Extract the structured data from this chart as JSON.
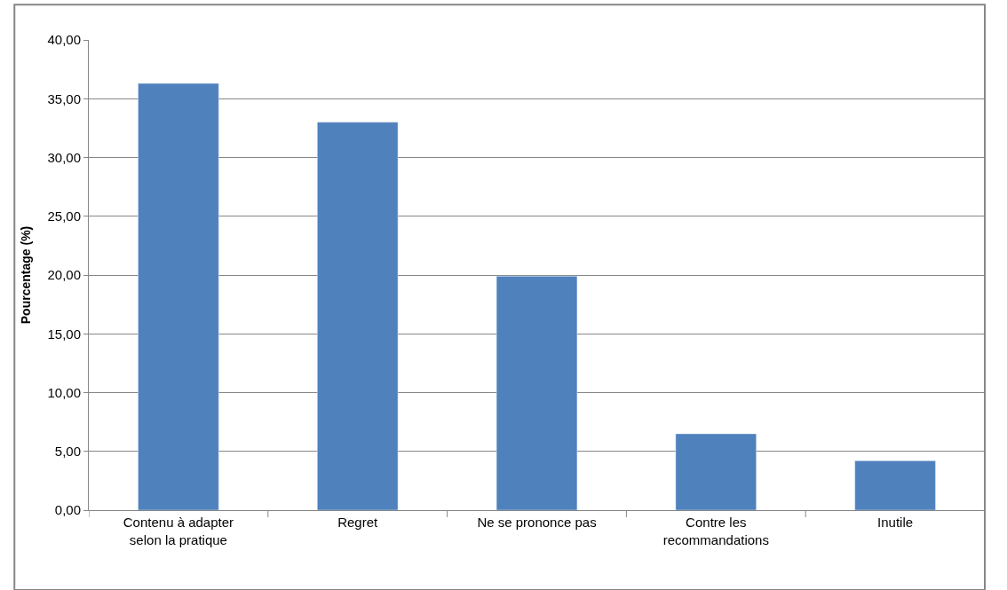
{
  "chart_data": {
    "type": "bar",
    "ylabel": "Pourcentage (%)",
    "categories": [
      "Contenu à adapter selon la pratique",
      "Regret",
      "Ne se prononce pas",
      "Contre les recommandations",
      "Inutile"
    ],
    "values": [
      36.3,
      33.0,
      19.9,
      6.5,
      4.2
    ],
    "color": "#4f81bd",
    "ylim": [
      0,
      40
    ],
    "yticks": [
      {
        "value": 0,
        "label": "0,00"
      },
      {
        "value": 5,
        "label": "5,00"
      },
      {
        "value": 10,
        "label": "10,00"
      },
      {
        "value": 15,
        "label": "15,00"
      },
      {
        "value": 20,
        "label": "20,00"
      },
      {
        "value": 25,
        "label": "25,00"
      },
      {
        "value": 30,
        "label": "30,00"
      },
      {
        "value": 35,
        "label": "35,00"
      },
      {
        "value": 40,
        "label": "40,00"
      }
    ],
    "grid": "y",
    "legend": false
  }
}
